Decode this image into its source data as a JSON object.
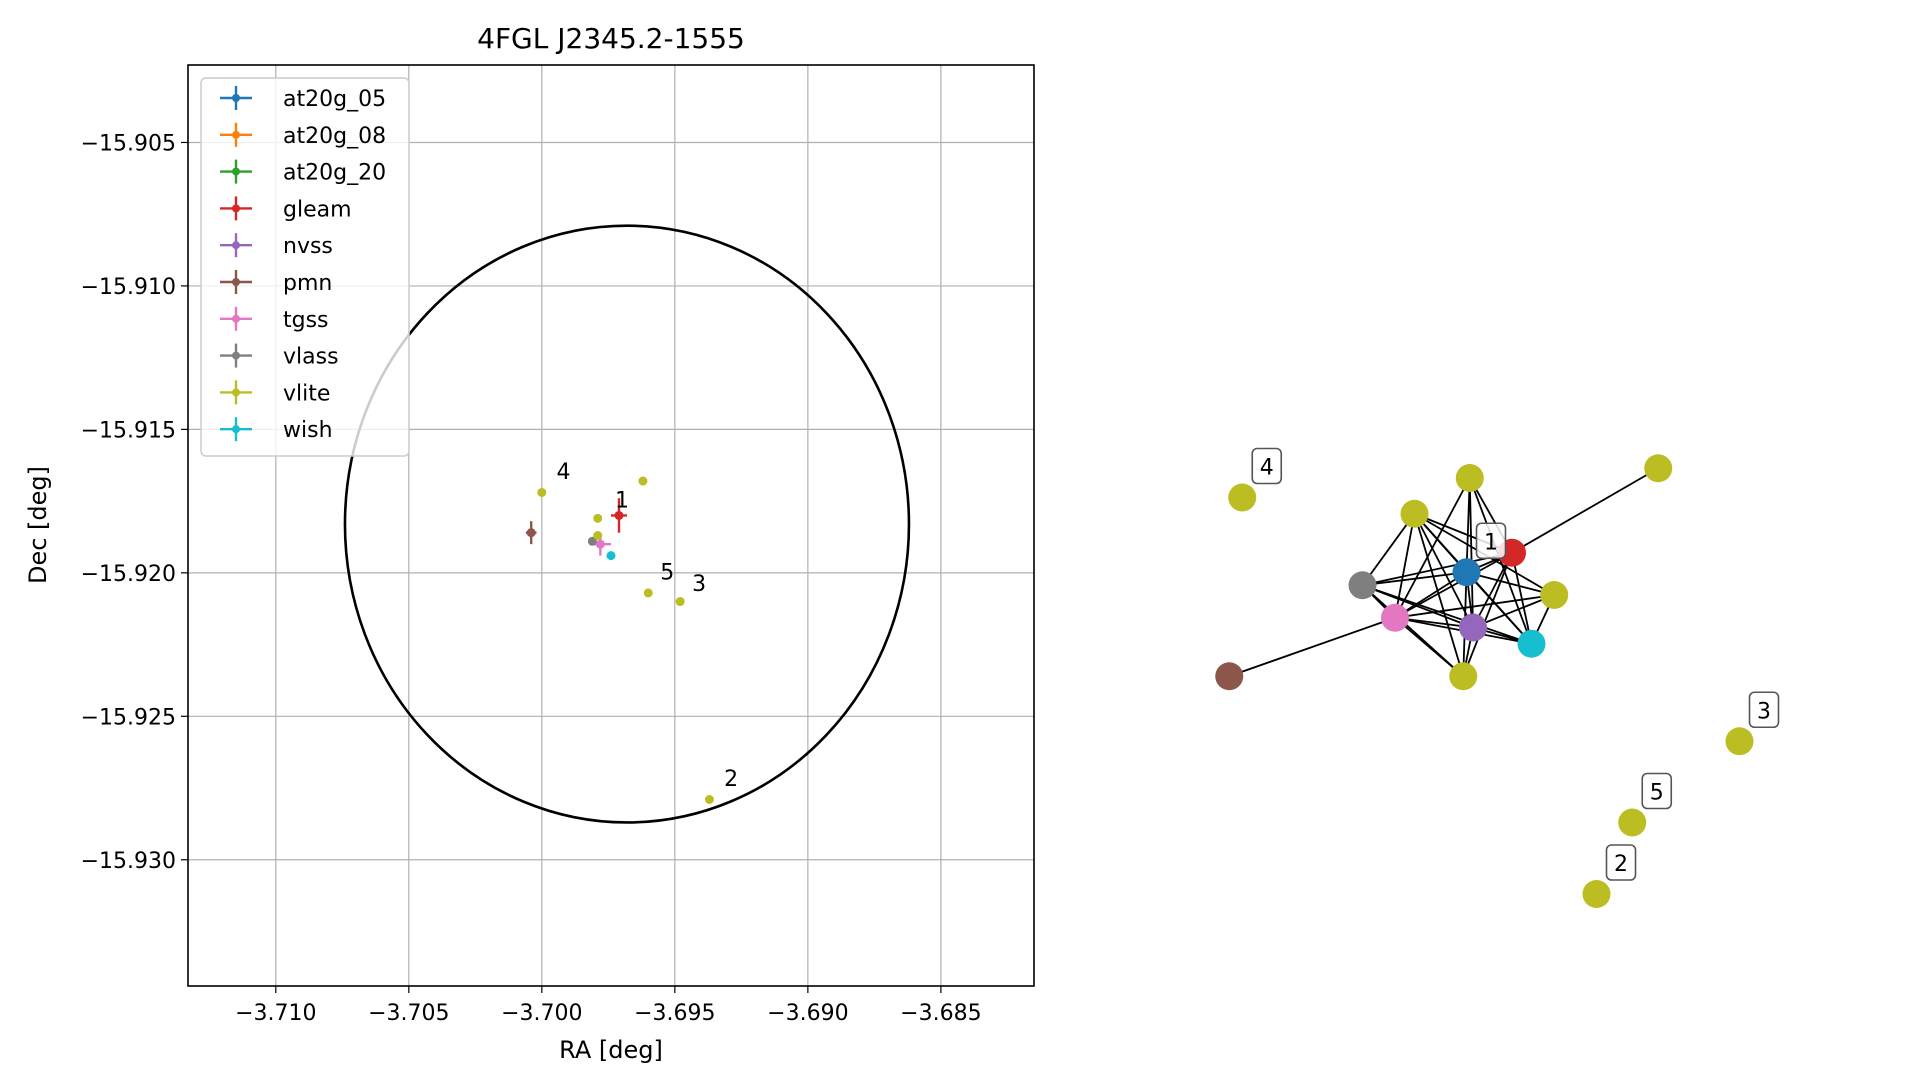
{
  "chart_data": [
    {
      "type": "scatter",
      "title": "4FGL J2345.2-1555",
      "xlabel": "RA [deg]",
      "ylabel": "Dec [deg]",
      "xlim": [
        -3.7133,
        -3.6815
      ],
      "ylim": [
        -15.9344,
        -15.9023
      ],
      "xticks": [
        -3.71,
        -3.705,
        -3.7,
        -3.695,
        -3.69,
        -3.685
      ],
      "xtick_labels": [
        "−3.710",
        "−3.705",
        "−3.700",
        "−3.695",
        "−3.690",
        "−3.685"
      ],
      "yticks": [
        -15.905,
        -15.91,
        -15.915,
        -15.92,
        -15.925,
        -15.93
      ],
      "ytick_labels": [
        "−15.905",
        "−15.910",
        "−15.915",
        "−15.920",
        "−15.925",
        "−15.930"
      ],
      "grid": true,
      "legend_position": "top-left",
      "circle": {
        "center": [
          -3.6968,
          -15.9183
        ],
        "radius_ra": 0.0106,
        "radius_dec": 0.0104
      },
      "series": [
        {
          "name": "at20g_05",
          "color": "#1f77b4",
          "points": []
        },
        {
          "name": "at20g_08",
          "color": "#ff7f0e",
          "points": []
        },
        {
          "name": "at20g_20",
          "color": "#2ca02c",
          "points": []
        },
        {
          "name": "gleam",
          "color": "#d62728",
          "points": [
            {
              "x": -3.6971,
              "y": -15.918,
              "xerr": 0.0003,
              "yerr": 0.0006
            }
          ]
        },
        {
          "name": "nvss",
          "color": "#9467bd",
          "points": []
        },
        {
          "name": "pmn",
          "color": "#8c564b",
          "points": [
            {
              "x": -3.7004,
              "y": -15.9186,
              "xerr": 0.0002,
              "yerr": 0.0004
            }
          ]
        },
        {
          "name": "tgss",
          "color": "#e377c2",
          "points": [
            {
              "x": -3.6978,
              "y": -15.919,
              "xerr": 0.0004,
              "yerr": 0.0004
            }
          ]
        },
        {
          "name": "vlass",
          "color": "#7f7f7f",
          "points": [
            {
              "x": -3.6981,
              "y": -15.9189
            }
          ]
        },
        {
          "name": "vlite",
          "color": "#bcbd22",
          "points": [
            {
              "x": -3.7,
              "y": -15.9172
            },
            {
              "x": -3.6962,
              "y": -15.9168
            },
            {
              "x": -3.6979,
              "y": -15.9181
            },
            {
              "x": -3.6979,
              "y": -15.9187
            },
            {
              "x": -3.696,
              "y": -15.9207
            },
            {
              "x": -3.6948,
              "y": -15.921
            },
            {
              "x": -3.6937,
              "y": -15.9279
            }
          ]
        },
        {
          "name": "wish",
          "color": "#17becf",
          "points": [
            {
              "x": -3.6974,
              "y": -15.9194
            }
          ]
        }
      ],
      "annotations": [
        {
          "text": "1",
          "x": -3.6974,
          "y": -15.9178
        },
        {
          "text": "4",
          "x": -3.6996,
          "y": -15.9168
        },
        {
          "text": "5",
          "x": -3.6957,
          "y": -15.9203
        },
        {
          "text": "3",
          "x": -3.6945,
          "y": -15.9207
        },
        {
          "text": "2",
          "x": -3.6933,
          "y": -15.9275
        }
      ]
    },
    {
      "type": "network",
      "nodes": [
        {
          "id": "at20g",
          "color": "#1f77b4",
          "label": "1",
          "x": 0.41,
          "y": 0.615
        },
        {
          "id": "gleam",
          "color": "#d62728",
          "label": "",
          "x": 0.48,
          "y": 0.645
        },
        {
          "id": "vlass",
          "color": "#7f7f7f",
          "label": "",
          "x": 0.25,
          "y": 0.595
        },
        {
          "id": "tgss",
          "color": "#e377c2",
          "label": "",
          "x": 0.3,
          "y": 0.545
        },
        {
          "id": "nvss",
          "color": "#9467bd",
          "label": "",
          "x": 0.42,
          "y": 0.53
        },
        {
          "id": "wish",
          "color": "#17becf",
          "label": "",
          "x": 0.51,
          "y": 0.505
        },
        {
          "id": "vlite_a",
          "color": "#bcbd22",
          "label": "",
          "x": 0.415,
          "y": 0.76
        },
        {
          "id": "vlite_b",
          "color": "#bcbd22",
          "label": "",
          "x": 0.33,
          "y": 0.705
        },
        {
          "id": "vlite_c",
          "color": "#bcbd22",
          "label": "",
          "x": 0.545,
          "y": 0.58
        },
        {
          "id": "vlite_d",
          "color": "#bcbd22",
          "label": "",
          "x": 0.405,
          "y": 0.455
        },
        {
          "id": "vlite_e",
          "color": "#bcbd22",
          "label": "",
          "x": 0.705,
          "y": 0.775
        },
        {
          "id": "pmn",
          "color": "#8c564b",
          "label": "",
          "x": 0.045,
          "y": 0.455
        },
        {
          "id": "src4",
          "color": "#bcbd22",
          "label": "4",
          "x": 0.065,
          "y": 0.73
        },
        {
          "id": "src3",
          "color": "#bcbd22",
          "label": "3",
          "x": 0.83,
          "y": 0.355
        },
        {
          "id": "src5",
          "color": "#bcbd22",
          "label": "5",
          "x": 0.665,
          "y": 0.23
        },
        {
          "id": "src2",
          "color": "#bcbd22",
          "label": "2",
          "x": 0.61,
          "y": 0.12
        }
      ],
      "edges": [
        [
          "vlite_d",
          "vlite_b"
        ],
        [
          "vlite_d",
          "at20g"
        ],
        [
          "vlite_d",
          "gleam"
        ],
        [
          "vlite_d",
          "vlass"
        ],
        [
          "vlite_d",
          "tgss"
        ],
        [
          "vlite_d",
          "nvss"
        ],
        [
          "vlite_b",
          "at20g"
        ],
        [
          "vlite_b",
          "gleam"
        ],
        [
          "vlite_b",
          "vlass"
        ],
        [
          "vlite_b",
          "tgss"
        ],
        [
          "vlite_b",
          "nvss"
        ],
        [
          "vlite_b",
          "wish"
        ],
        [
          "vlite_b",
          "vlite_c"
        ],
        [
          "at20g",
          "gleam"
        ],
        [
          "at20g",
          "vlass"
        ],
        [
          "at20g",
          "tgss"
        ],
        [
          "at20g",
          "nvss"
        ],
        [
          "at20g",
          "wish"
        ],
        [
          "at20g",
          "vlite_c"
        ],
        [
          "at20g",
          "vlite_a"
        ],
        [
          "gleam",
          "vlite_e"
        ],
        [
          "gleam",
          "vlass"
        ],
        [
          "gleam",
          "tgss"
        ],
        [
          "gleam",
          "nvss"
        ],
        [
          "gleam",
          "wish"
        ],
        [
          "gleam",
          "vlite_a"
        ],
        [
          "vlass",
          "tgss"
        ],
        [
          "vlass",
          "nvss"
        ],
        [
          "vlass",
          "wish"
        ],
        [
          "tgss",
          "nvss"
        ],
        [
          "tgss",
          "wish"
        ],
        [
          "tgss",
          "vlite_c"
        ],
        [
          "tgss",
          "vlite_a"
        ],
        [
          "tgss",
          "pmn"
        ],
        [
          "nvss",
          "wish"
        ],
        [
          "nvss",
          "vlite_c"
        ],
        [
          "nvss",
          "vlite_a"
        ],
        [
          "wish",
          "vlite_c"
        ],
        [
          "wish",
          "vlite_a"
        ]
      ]
    }
  ]
}
